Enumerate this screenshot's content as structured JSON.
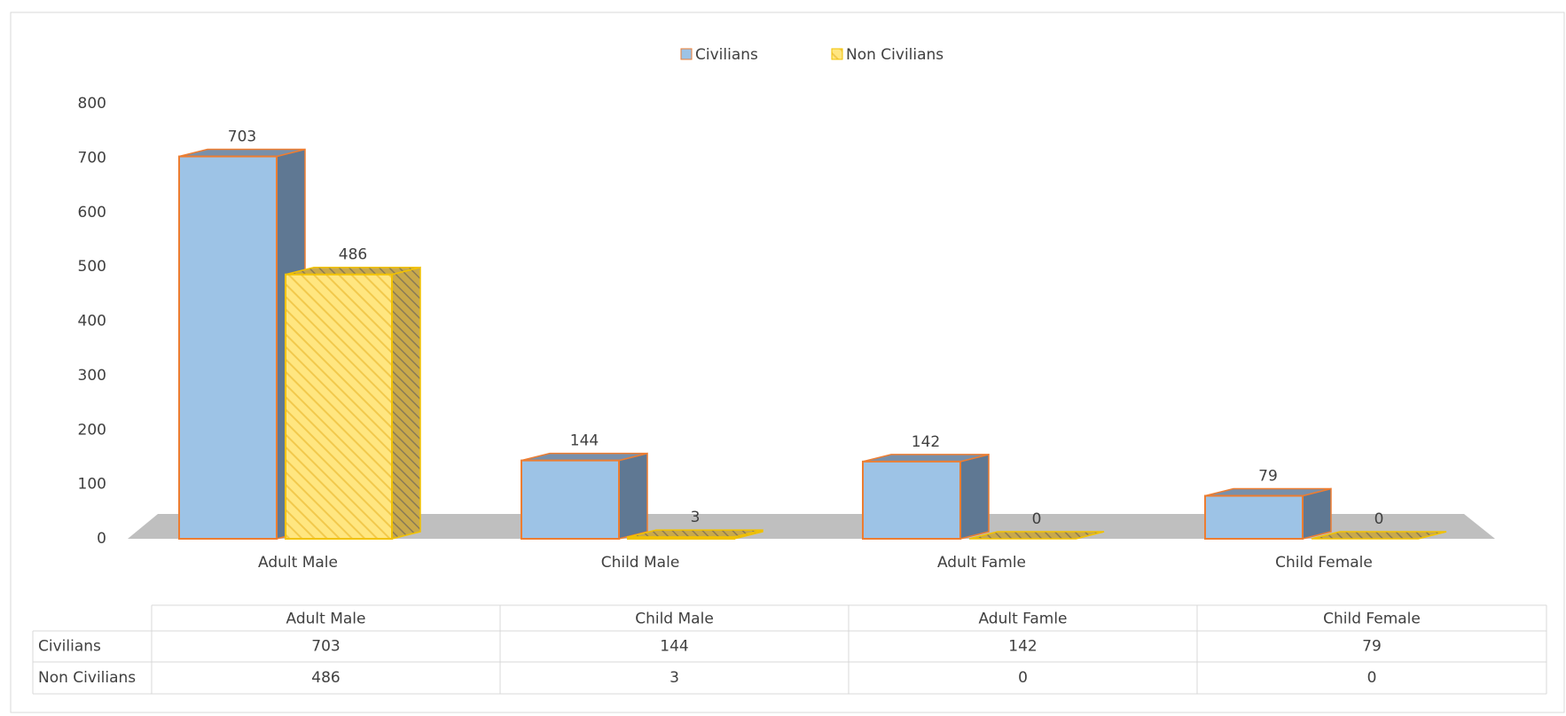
{
  "chart_data": {
    "type": "bar3d",
    "categories": [
      "Adult Male",
      "Child Male",
      "Adult Famle",
      "Child Female"
    ],
    "series": [
      {
        "name": "Civilians",
        "color": "#9dc3e6",
        "values": [
          703,
          144,
          142,
          79
        ]
      },
      {
        "name": "Non Civilians",
        "color": "#ffe680",
        "values": [
          486,
          3,
          0,
          0
        ]
      }
    ],
    "ylim": [
      0,
      800
    ],
    "yticks": [
      0,
      100,
      200,
      300,
      400,
      500,
      600,
      700,
      800
    ],
    "legend": "top",
    "data_table": true
  }
}
